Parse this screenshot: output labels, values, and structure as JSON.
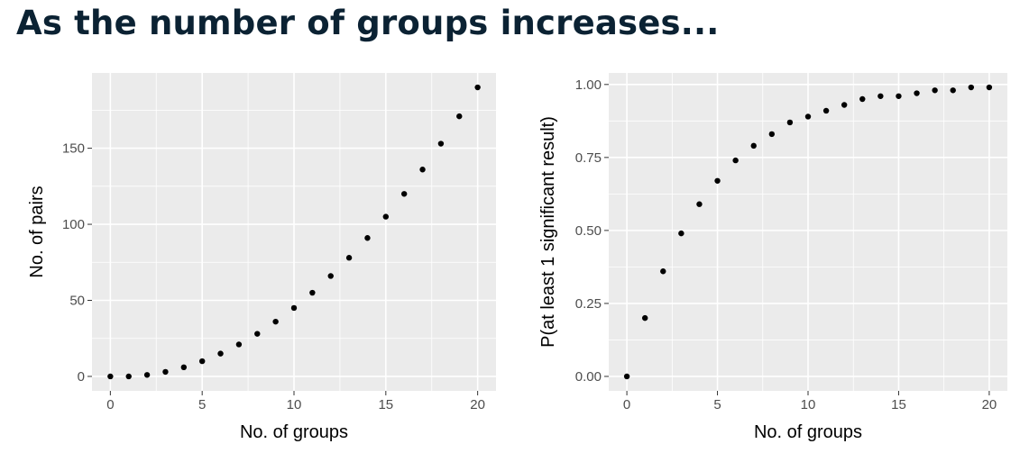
{
  "title": "As the number of groups increases...",
  "chart_data": [
    {
      "type": "scatter",
      "xlabel": "No. of groups",
      "ylabel": "No. of pairs",
      "xlim": [
        -1,
        21
      ],
      "ylim": [
        -9.5,
        199.5
      ],
      "xticks": [
        0,
        5,
        10,
        15,
        20
      ],
      "xtick_labels": [
        "0",
        "5",
        "10",
        "15",
        "20"
      ],
      "yticks": [
        0,
        50,
        100,
        150
      ],
      "ytick_labels": [
        "0",
        "50",
        "100",
        "150"
      ],
      "grid": true,
      "legend": "none",
      "x": [
        0,
        1,
        2,
        3,
        4,
        5,
        6,
        7,
        8,
        9,
        10,
        11,
        12,
        13,
        14,
        15,
        16,
        17,
        18,
        19,
        20
      ],
      "y": [
        0,
        0,
        1,
        3,
        6,
        10,
        15,
        21,
        28,
        36,
        45,
        55,
        66,
        78,
        91,
        105,
        120,
        136,
        153,
        171,
        190
      ],
      "colors": {
        "panel": "#ebebeb",
        "grid": "#ffffff",
        "point": "#000000"
      }
    },
    {
      "type": "scatter",
      "xlabel": "No. of groups",
      "ylabel": "P(at least 1 significant result)",
      "xlim": [
        -1,
        21
      ],
      "ylim": [
        -0.0495,
        1.0395
      ],
      "xticks": [
        0,
        5,
        10,
        15,
        20
      ],
      "xtick_labels": [
        "0",
        "5",
        "10",
        "15",
        "20"
      ],
      "yticks": [
        0,
        0.25,
        0.5,
        0.75,
        1
      ],
      "ytick_labels": [
        "0.00",
        "0.25",
        "0.50",
        "0.75",
        "1.00"
      ],
      "grid": true,
      "legend": "none",
      "x": [
        0,
        1,
        2,
        3,
        4,
        5,
        6,
        7,
        8,
        9,
        10,
        11,
        12,
        13,
        14,
        15,
        16,
        17,
        18,
        19,
        20
      ],
      "y": [
        0.0,
        0.2,
        0.36,
        0.49,
        0.59,
        0.67,
        0.74,
        0.79,
        0.83,
        0.87,
        0.89,
        0.91,
        0.93,
        0.95,
        0.96,
        0.96,
        0.97,
        0.98,
        0.98,
        0.99,
        0.99
      ],
      "colors": {
        "panel": "#ebebeb",
        "grid": "#ffffff",
        "point": "#000000"
      }
    }
  ]
}
